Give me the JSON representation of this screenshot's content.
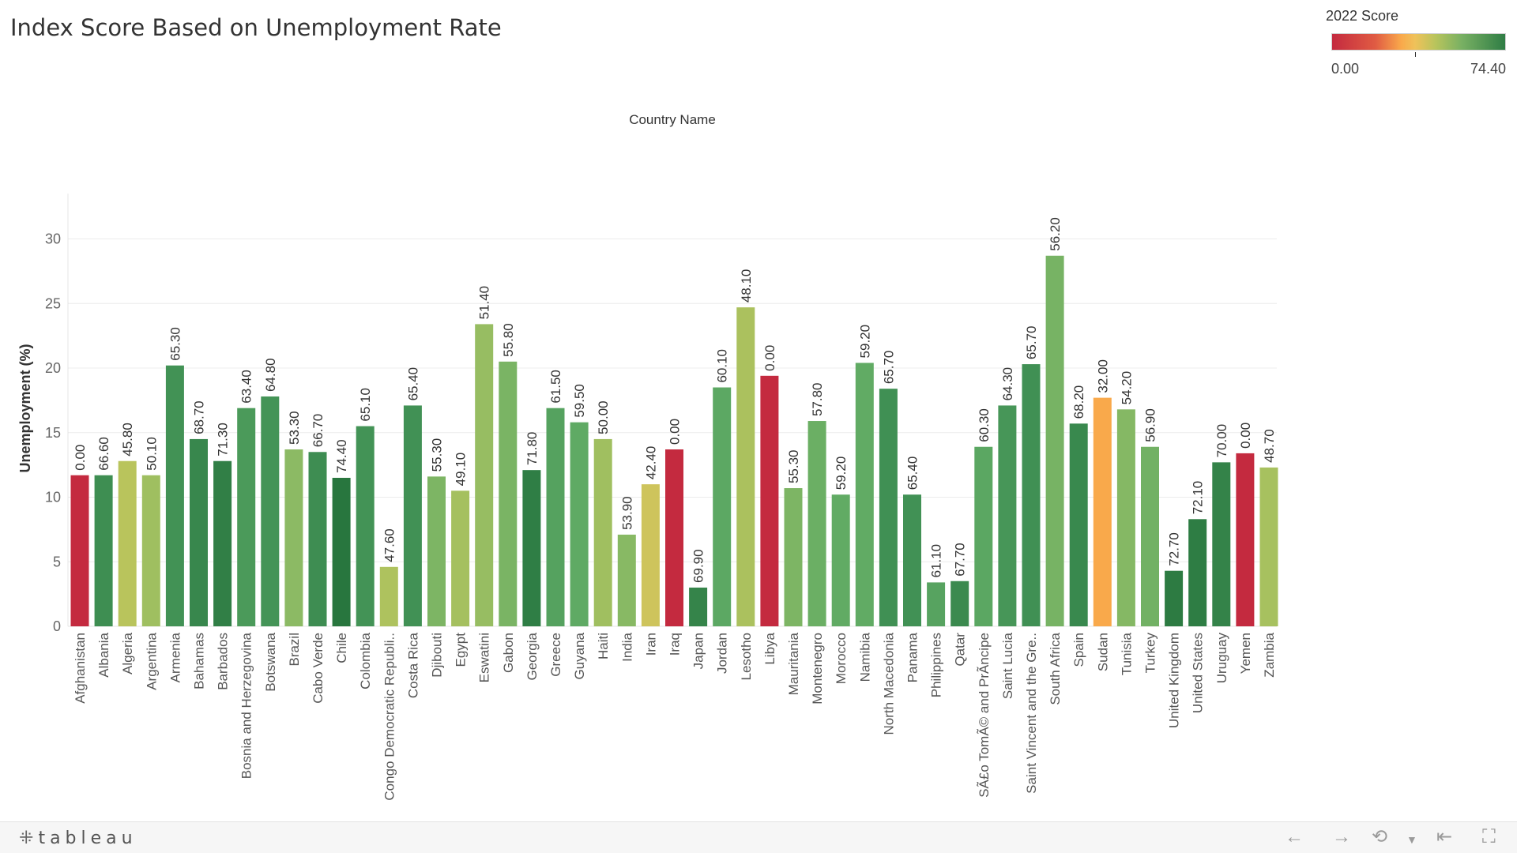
{
  "title": "Index Score Based on Unemployment Rate",
  "legend": {
    "title": "2022 Score",
    "min_label": "0.00",
    "max_label": "74.40"
  },
  "footer": {
    "logo": "tableau",
    "icons": [
      "undo-icon",
      "redo-icon",
      "revert-icon",
      "dropdown-icon",
      "reset-icon",
      "fullscreen-icon"
    ]
  },
  "chart_data": {
    "type": "bar",
    "title": "Index Score Based on Unemployment Rate",
    "column_header": "Country Name",
    "ylabel": "Unemployment (%)",
    "xlabel": "",
    "ylim": [
      0,
      32
    ],
    "yticks": [
      0,
      5,
      10,
      15,
      20,
      25,
      30
    ],
    "grid": true,
    "color_legend": "2022 Score",
    "color_range": [
      0,
      74.4
    ],
    "categories": [
      "Afghanistan",
      "Albania",
      "Algeria",
      "Argentina",
      "Armenia",
      "Bahamas",
      "Barbados",
      "Bosnia and Herzegovina",
      "Botswana",
      "Brazil",
      "Cabo Verde",
      "Chile",
      "Colombia",
      "Congo Democratic Republi..",
      "Costa Rica",
      "Djibouti",
      "Egypt",
      "Eswatini",
      "Gabon",
      "Georgia",
      "Greece",
      "Guyana",
      "Haiti",
      "India",
      "Iran",
      "Iraq",
      "Japan",
      "Jordan",
      "Lesotho",
      "Libya",
      "Mauritania",
      "Montenegro",
      "Morocco",
      "Namibia",
      "North Macedonia",
      "Panama",
      "Philippines",
      "Qatar",
      "SÃ£o TomÃ© and PrÃncipe",
      "Saint Lucia",
      "Saint Vincent and the Gre..",
      "South Africa",
      "Spain",
      "Sudan",
      "Tunisia",
      "Turkey",
      "United Kingdom",
      "United States",
      "Uruguay",
      "Yemen",
      "Zambia"
    ],
    "values": [
      11.7,
      11.7,
      12.8,
      11.7,
      20.2,
      14.5,
      12.8,
      16.9,
      17.8,
      13.7,
      13.5,
      11.5,
      15.5,
      4.6,
      17.1,
      11.6,
      10.5,
      23.4,
      20.5,
      12.1,
      16.9,
      15.8,
      14.5,
      7.1,
      11.0,
      13.7,
      3.0,
      18.5,
      24.7,
      19.4,
      10.7,
      15.9,
      10.2,
      20.4,
      18.4,
      10.2,
      3.4,
      3.5,
      13.9,
      17.1,
      20.3,
      28.7,
      15.7,
      17.7,
      16.8,
      13.9,
      4.3,
      8.3,
      12.7,
      13.4,
      12.3
    ],
    "scores": [
      "0.00",
      "66.60",
      "45.80",
      "50.10",
      "65.30",
      "68.70",
      "71.30",
      "63.40",
      "64.80",
      "53.30",
      "66.70",
      "74.40",
      "65.10",
      "47.60",
      "65.40",
      "55.30",
      "49.10",
      "51.40",
      "55.80",
      "71.80",
      "61.50",
      "59.50",
      "50.00",
      "53.90",
      "42.40",
      "0.00",
      "69.90",
      "60.10",
      "48.10",
      "0.00",
      "55.30",
      "57.80",
      "59.20",
      "59.20",
      "65.70",
      "65.40",
      "61.10",
      "67.70",
      "60.30",
      "64.30",
      "65.70",
      "56.20",
      "68.20",
      "32.00",
      "54.20",
      "56.90",
      "72.70",
      "72.10",
      "70.00",
      "0.00",
      "48.70"
    ]
  }
}
